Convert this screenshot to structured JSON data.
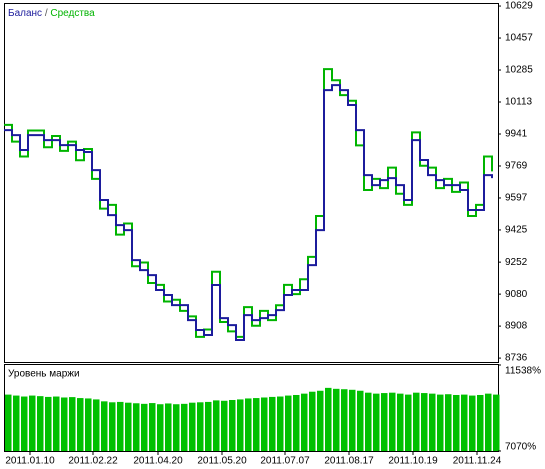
{
  "chart_data": [
    {
      "type": "line",
      "legend_separator": "/",
      "x": [
        0,
        8,
        16,
        24,
        32,
        40,
        48,
        56,
        64,
        72,
        80,
        88,
        96,
        104,
        112,
        120,
        128,
        136,
        144,
        152,
        160,
        168,
        176,
        184,
        192,
        200,
        208,
        216,
        224,
        232,
        240,
        248,
        256,
        264,
        272,
        280,
        288,
        296,
        304,
        312,
        320,
        328,
        336,
        344,
        352,
        360,
        368,
        376,
        384,
        392,
        400,
        408,
        416,
        424,
        432,
        440,
        448,
        456,
        464,
        472,
        480,
        488
      ],
      "xlim": [
        0,
        494
      ],
      "ylim": [
        8715,
        10640
      ],
      "yticks": [
        10629,
        10457,
        10285,
        10113,
        9941,
        9769,
        9597,
        9425,
        9252,
        9080,
        8908,
        8736
      ],
      "series": [
        {
          "name": "Средства",
          "color": "#00b400",
          "values": [
            9990,
            9900,
            9820,
            9960,
            9960,
            9870,
            9930,
            9850,
            9900,
            9800,
            9860,
            9700,
            9540,
            9560,
            9400,
            9460,
            9230,
            9250,
            9140,
            9130,
            9040,
            9050,
            8990,
            8960,
            8850,
            8890,
            9200,
            8930,
            8880,
            8850,
            9010,
            8910,
            8990,
            8940,
            9020,
            9130,
            9080,
            9160,
            9280,
            9500,
            10290,
            10230,
            10150,
            10120,
            9880,
            9640,
            9700,
            9650,
            9760,
            9620,
            9560,
            9950,
            9770,
            9760,
            9650,
            9700,
            9630,
            9680,
            9500,
            9560,
            9820,
            9740
          ]
        },
        {
          "name": "Баланс",
          "color": "#1c1c9c",
          "values": [
            9962,
            9935,
            9855,
            9935,
            9935,
            9908,
            9908,
            9881,
            9881,
            9855,
            9844,
            9747,
            9586,
            9505,
            9451,
            9424,
            9263,
            9209,
            9182,
            9102,
            9075,
            9021,
            9021,
            8940,
            8887,
            8860,
            9129,
            8951,
            8913,
            8833,
            8967,
            8940,
            8951,
            8967,
            8994,
            9075,
            9102,
            9102,
            9236,
            9424,
            10177,
            10204,
            10177,
            10097,
            9962,
            9720,
            9666,
            9693,
            9704,
            9666,
            9586,
            9908,
            9801,
            9720,
            9693,
            9666,
            9666,
            9640,
            9532,
            9532,
            9720,
            9704
          ]
        }
      ]
    },
    {
      "type": "bar",
      "title": "Уровень маржи",
      "color": "#00c000",
      "x": [
        0,
        8,
        16,
        24,
        32,
        40,
        48,
        56,
        64,
        72,
        80,
        88,
        96,
        104,
        112,
        120,
        128,
        136,
        144,
        152,
        160,
        168,
        176,
        184,
        192,
        200,
        208,
        216,
        224,
        232,
        240,
        248,
        256,
        264,
        272,
        280,
        288,
        296,
        304,
        312,
        320,
        328,
        336,
        344,
        352,
        360,
        368,
        376,
        384,
        392,
        400,
        408,
        416,
        424,
        432,
        440,
        448,
        456,
        464,
        472,
        480,
        488
      ],
      "values": [
        10000,
        9950,
        9900,
        9950,
        9920,
        9880,
        9900,
        9850,
        9870,
        9820,
        9800,
        9750,
        9650,
        9600,
        9620,
        9580,
        9550,
        9520,
        9560,
        9500,
        9540,
        9500,
        9520,
        9580,
        9600,
        9620,
        9700,
        9680,
        9720,
        9750,
        9800,
        9820,
        9850,
        9880,
        9900,
        9950,
        9980,
        10050,
        10150,
        10200,
        10350,
        10300,
        10280,
        10250,
        10200,
        10100,
        10050,
        10080,
        10100,
        10050,
        10000,
        10100,
        10080,
        10050,
        10000,
        10020,
        9980,
        10000,
        9950,
        9980,
        10050,
        10000
      ],
      "xlim": [
        0,
        494
      ],
      "ylim": [
        7070,
        11538
      ],
      "yticks": [
        {
          "value": 11538,
          "label": "11538%"
        },
        {
          "value": 7070,
          "label": "7070%"
        }
      ],
      "xticks": [
        {
          "value": 26,
          "label": "2011.01.10"
        },
        {
          "value": 89,
          "label": "2011.02.22"
        },
        {
          "value": 154,
          "label": "2011.04.20"
        },
        {
          "value": 218,
          "label": "2011.05.20"
        },
        {
          "value": 281,
          "label": "2011.07.07"
        },
        {
          "value": 345,
          "label": "2011.08.17"
        },
        {
          "value": 409,
          "label": "2011.10.19"
        },
        {
          "value": 473,
          "label": "2011.11.24"
        }
      ]
    }
  ]
}
